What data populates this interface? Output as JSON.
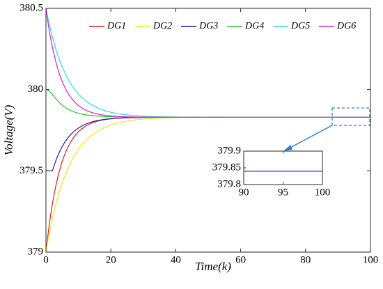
{
  "chart_data": {
    "type": "line",
    "xlabel": "Time(k)",
    "ylabel": "Voltage(V)",
    "xlim": [
      0,
      100
    ],
    "ylim": [
      379,
      380.5
    ],
    "xticks": [
      "0",
      "20",
      "40",
      "60",
      "80",
      "100"
    ],
    "yticks": [
      "379",
      "379.5",
      "380",
      "380.5"
    ],
    "grid": false,
    "legend_position": "top",
    "steady_state": 379.83,
    "series": [
      {
        "name": "DG1",
        "color": "#e41a1c",
        "start": 379.0,
        "tau": 4.5,
        "plateau": null,
        "bump": null
      },
      {
        "name": "DG2",
        "color": "#f5e614",
        "start": 379.0,
        "tau": 7.0,
        "plateau": null,
        "bump": null
      },
      {
        "name": "DG3",
        "color": "#1f1ab0",
        "start": 379.5,
        "tau": 5.0,
        "plateau": 2,
        "bump": null
      },
      {
        "name": "DG4",
        "color": "#22cc22",
        "start": 380.0,
        "tau": 5.0,
        "plateau": null,
        "bump": 0.025
      },
      {
        "name": "DG5",
        "color": "#22e0e0",
        "start": 380.5,
        "tau": 6.5,
        "plateau": null,
        "bump": null
      },
      {
        "name": "DG6",
        "color": "#e020c8",
        "start": 380.5,
        "tau": 4.5,
        "plateau": null,
        "bump": null
      }
    ],
    "inset": {
      "xlim": [
        90,
        100
      ],
      "ylim": [
        379.8,
        379.9
      ],
      "xticks": [
        "90",
        "95",
        "100"
      ],
      "yticks": [
        "379.9",
        "379.85",
        "379.8"
      ],
      "value": 379.84
    }
  }
}
